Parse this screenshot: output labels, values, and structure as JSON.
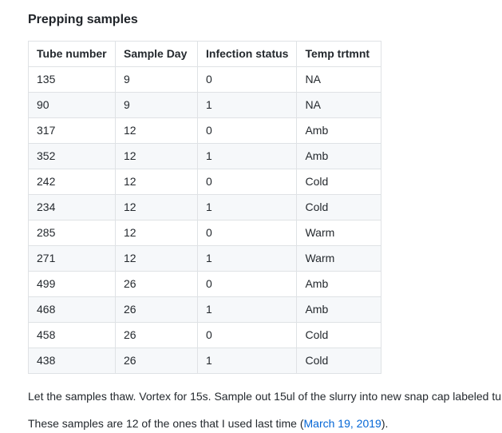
{
  "page": {
    "title": "Prepping samples"
  },
  "table": {
    "headers": [
      "Tube number",
      "Sample Day",
      "Infection status",
      "Temp trtmnt"
    ],
    "rows": [
      [
        "135",
        "9",
        "0",
        "NA"
      ],
      [
        "90",
        "9",
        "1",
        "NA"
      ],
      [
        "317",
        "12",
        "0",
        "Amb"
      ],
      [
        "352",
        "12",
        "1",
        "Amb"
      ],
      [
        "242",
        "12",
        "0",
        "Cold"
      ],
      [
        "234",
        "12",
        "1",
        "Cold"
      ],
      [
        "285",
        "12",
        "0",
        "Warm"
      ],
      [
        "271",
        "12",
        "1",
        "Warm"
      ],
      [
        "499",
        "26",
        "0",
        "Amb"
      ],
      [
        "468",
        "26",
        "1",
        "Amb"
      ],
      [
        "458",
        "26",
        "0",
        "Cold"
      ],
      [
        "438",
        "26",
        "1",
        "Cold"
      ]
    ]
  },
  "paragraphs": {
    "instructions": "Let the samples thaw. Vortex for 15s. Sample out 15ul of the slurry into new snap cap labeled tu",
    "note_prefix": "These samples are 12 of the ones that I used last time (",
    "note_link": "March 19, 2019",
    "note_suffix": ")."
  },
  "colors": {
    "link": "#0366d6",
    "border": "#dfe2e5",
    "row_stripe": "#f6f8fa",
    "text": "#24292e"
  }
}
